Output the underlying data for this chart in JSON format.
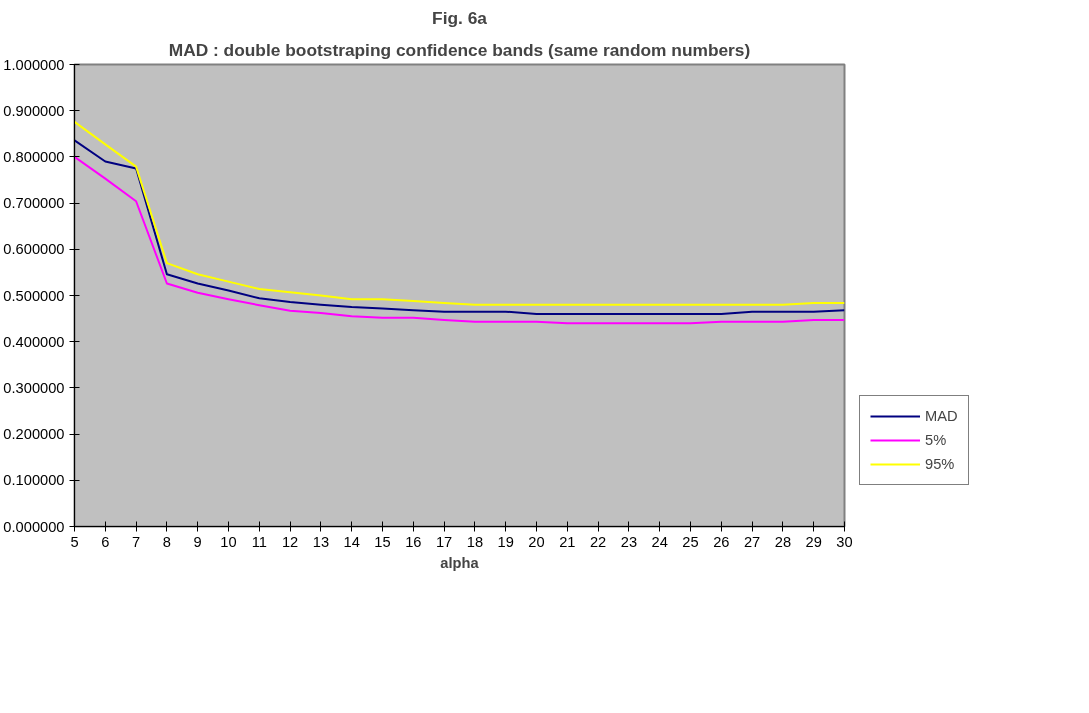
{
  "chart_data": {
    "type": "line",
    "title": "Fig. 6a",
    "subtitle": "MAD : double bootstraping confidence bands (same random numbers)",
    "xlabel": "alpha",
    "categories": [
      "5",
      "6",
      "7",
      "8",
      "9",
      "10",
      "11",
      "12",
      "13",
      "14",
      "15",
      "16",
      "17",
      "18",
      "19",
      "20",
      "21",
      "22",
      "23",
      "24",
      "25",
      "26",
      "27",
      "28",
      "29",
      "30"
    ],
    "series": [
      {
        "name": "MAD",
        "color": "#000080",
        "values": [
          0.836,
          0.79,
          0.775,
          0.546,
          0.526,
          0.511,
          0.494,
          0.486,
          0.48,
          0.475,
          0.472,
          0.468,
          0.465,
          0.465,
          0.465,
          0.46,
          0.46,
          0.46,
          0.46,
          0.46,
          0.46,
          0.46,
          0.465,
          0.465,
          0.465,
          0.468
        ]
      },
      {
        "name": "5%",
        "color": "#ff00ff",
        "values": [
          0.8,
          0.753,
          0.704,
          0.526,
          0.506,
          0.492,
          0.479,
          0.467,
          0.462,
          0.455,
          0.452,
          0.452,
          0.447,
          0.443,
          0.443,
          0.443,
          0.44,
          0.44,
          0.44,
          0.44,
          0.44,
          0.443,
          0.443,
          0.443,
          0.447,
          0.447
        ]
      },
      {
        "name": "95%",
        "color": "#ffff00",
        "values": [
          0.876,
          0.827,
          0.779,
          0.57,
          0.546,
          0.53,
          0.514,
          0.507,
          0.5,
          0.492,
          0.492,
          0.488,
          0.484,
          0.48,
          0.48,
          0.48,
          0.48,
          0.48,
          0.48,
          0.48,
          0.48,
          0.48,
          0.48,
          0.48,
          0.484,
          0.484
        ]
      }
    ],
    "ylim": [
      0,
      1
    ],
    "yticks": [
      {
        "value": 0,
        "label": "0.000000"
      },
      {
        "value": 0.1,
        "label": "0.100000"
      },
      {
        "value": 0.2,
        "label": "0.200000"
      },
      {
        "value": 0.3,
        "label": "0.300000"
      },
      {
        "value": 0.4,
        "label": "0.400000"
      },
      {
        "value": 0.5,
        "label": "0.500000"
      },
      {
        "value": 0.6,
        "label": "0.600000"
      },
      {
        "value": 0.7,
        "label": "0.700000"
      },
      {
        "value": 0.8,
        "label": "0.800000"
      },
      {
        "value": 0.9,
        "label": "0.900000"
      },
      {
        "value": 1,
        "label": "1.000000"
      }
    ],
    "grid": false,
    "legend": "bottom right",
    "marker": "none",
    "line_style": "solid"
  }
}
